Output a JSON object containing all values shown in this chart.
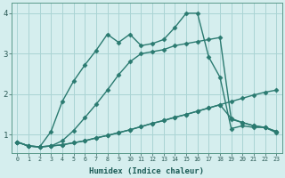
{
  "xlabel": "Humidex (Indice chaleur)",
  "background_color": "#d5eeee",
  "grid_color": "#aad4d4",
  "line_color": "#2a7a70",
  "xlim": [
    -0.5,
    23.5
  ],
  "ylim": [
    0.55,
    4.25
  ],
  "xtick_labels": [
    "0",
    "1",
    "2",
    "3",
    "4",
    "5",
    "6",
    "7",
    "8",
    "9",
    "10",
    "11",
    "12",
    "13",
    "14",
    "15",
    "16",
    "17",
    "18",
    "19",
    "20",
    "21",
    "22",
    "23"
  ],
  "ytick_values": [
    1,
    2,
    3,
    4
  ],
  "line1_x": [
    0,
    1,
    2,
    3,
    4,
    5,
    6,
    7,
    8,
    9,
    10,
    11,
    12,
    13,
    14,
    15,
    16,
    17,
    18,
    19,
    20,
    21,
    22,
    23
  ],
  "line1_y": [
    0.82,
    0.72,
    0.7,
    0.72,
    0.75,
    0.8,
    0.85,
    0.92,
    0.98,
    1.05,
    1.12,
    1.2,
    1.28,
    1.35,
    1.43,
    1.5,
    1.58,
    1.66,
    1.74,
    1.82,
    1.9,
    1.98,
    2.05,
    2.1
  ],
  "line2_x": [
    0,
    1,
    2,
    3,
    4,
    5,
    6,
    7,
    8,
    9,
    10,
    11,
    12,
    13,
    14,
    15,
    16,
    17,
    18,
    19,
    20,
    21,
    22,
    23
  ],
  "line2_y": [
    0.82,
    0.72,
    0.7,
    0.72,
    0.75,
    0.8,
    0.85,
    0.92,
    0.98,
    1.05,
    1.12,
    1.2,
    1.28,
    1.35,
    1.43,
    1.5,
    1.58,
    1.66,
    1.74,
    1.4,
    1.3,
    1.22,
    1.18,
    1.08
  ],
  "line3_x": [
    0,
    1,
    2,
    3,
    4,
    5,
    6,
    7,
    8,
    9,
    10,
    11,
    12,
    13,
    14,
    15,
    16,
    17,
    18,
    19,
    20,
    21,
    22,
    23
  ],
  "line3_y": [
    0.82,
    0.72,
    0.7,
    0.72,
    0.85,
    1.1,
    1.42,
    1.75,
    2.1,
    2.48,
    2.8,
    3.0,
    3.05,
    3.1,
    3.2,
    3.25,
    3.3,
    3.35,
    3.4,
    1.38,
    1.3,
    1.22,
    1.18,
    1.08
  ],
  "line4_x": [
    0,
    1,
    2,
    3,
    4,
    5,
    6,
    7,
    8,
    9,
    10,
    11,
    12,
    13,
    14,
    15,
    16,
    17,
    18,
    19,
    20,
    21,
    22,
    23
  ],
  "line4_y": [
    0.82,
    0.72,
    0.7,
    1.08,
    1.82,
    2.32,
    2.72,
    3.08,
    3.48,
    3.28,
    3.48,
    3.2,
    3.25,
    3.35,
    3.65,
    4.0,
    4.0,
    2.92,
    2.42,
    1.15,
    1.22,
    1.18,
    1.18,
    1.05
  ],
  "marker": "D",
  "marker_size": 2.5,
  "line_width": 1.0
}
